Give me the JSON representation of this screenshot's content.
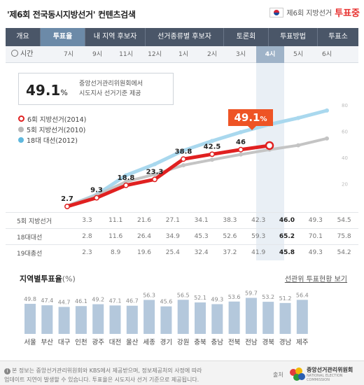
{
  "header": {
    "title": "'제6회 전국동시지방선거' 컨텐츠검색",
    "badge_small": "제6회 지방선거",
    "badge_big": "투표중"
  },
  "nav": [
    "개요",
    "투표율",
    "내 지역 후보자",
    "선거종류별 후보자",
    "토론회",
    "투표방법",
    "투표소"
  ],
  "time": {
    "label": "시간",
    "hours": [
      "7시",
      "9시",
      "11시",
      "12시",
      "1시",
      "2시",
      "3시",
      "4시",
      "5시",
      "6시"
    ],
    "active_index": 7
  },
  "info": {
    "value": "49.1",
    "unit": "%",
    "text1": "중앙선거관리위원회에서",
    "text2": "시도지사 선거기준 제공"
  },
  "legend": [
    {
      "label": "6회 지방선거(2014)",
      "color": "#e02020"
    },
    {
      "label": "5회 지방선거(2010)",
      "color": "#b8b8b8"
    },
    {
      "label": "18대 대선(2012)",
      "color": "#5fb8de"
    }
  ],
  "callout": {
    "value": "49.1",
    "unit": "%"
  },
  "chart_data": [
    {
      "type": "line",
      "x": [
        "7시",
        "9시",
        "11시",
        "12시",
        "1시",
        "2시",
        "3시",
        "4시",
        "5시",
        "6시"
      ],
      "series": [
        {
          "name": "6회 지방선거(2014)",
          "values": [
            2.7,
            9.3,
            18.8,
            23.3,
            38.8,
            42.5,
            46.0,
            49.1,
            null,
            null
          ],
          "color": "#e02020"
        },
        {
          "name": "5회 지방선거(2010)",
          "values": [
            3.3,
            11.1,
            21.6,
            27.1,
            34.1,
            38.3,
            42.3,
            46.0,
            49.3,
            54.5
          ],
          "color": "#c4c4c4"
        },
        {
          "name": "18대 대선(2012)",
          "values": [
            2.8,
            11.6,
            26.4,
            34.9,
            45.3,
            52.6,
            59.3,
            65.2,
            70.1,
            75.8
          ],
          "color": "#a9d8ee"
        }
      ],
      "data_labels": [
        "2.7",
        "9.3",
        "18.8",
        "23.3",
        "38.8",
        "42.5",
        "46"
      ],
      "right_ticks": [
        "80",
        "60",
        "40",
        "20"
      ],
      "ylim": [
        0,
        80
      ]
    },
    {
      "type": "bar",
      "title": "지역별투표율",
      "title_unit": "(%)",
      "categories": [
        "서울",
        "부산",
        "대구",
        "인천",
        "광주",
        "대전",
        "울산",
        "세종",
        "경기",
        "강원",
        "충북",
        "충남",
        "전북",
        "전남",
        "경북",
        "경남",
        "제주"
      ],
      "values": [
        49.8,
        47.4,
        44.7,
        46.1,
        49.2,
        47.1,
        46.7,
        56.3,
        45.6,
        56.5,
        52.1,
        49.3,
        53.6,
        59.7,
        53.2,
        51.2,
        56.4
      ],
      "ylim": [
        0,
        80
      ],
      "color": "#b4c8dc"
    }
  ],
  "table": [
    {
      "label": "5회 지방선거",
      "values": [
        "3.3",
        "11.1",
        "21.6",
        "27.1",
        "34.1",
        "38.3",
        "42.3",
        "46.0",
        "49.3",
        "54.5"
      ]
    },
    {
      "label": "18대대선",
      "values": [
        "2.8",
        "11.6",
        "26.4",
        "34.9",
        "45.3",
        "52.6",
        "59.3",
        "65.2",
        "70.1",
        "75.8"
      ]
    },
    {
      "label": "19대총선",
      "values": [
        "2.3",
        "8.9",
        "19.6",
        "25.4",
        "32.4",
        "37.2",
        "41.9",
        "45.8",
        "49.3",
        "54.2"
      ]
    }
  ],
  "region": {
    "title": "지역별투표율",
    "unit": "(%)",
    "link": "선관위 투표현황 보기"
  },
  "footer": {
    "note1": "본 정보는 중앙선거관리위원회와 KBS에서 제공받으며, 정보제공처의 사정에 따라",
    "note2": "업데이트 지연이 발생할 수 있습니다. 투표율은 시도지사 선거 기준으로 제공됩니다.",
    "source_label": "출처",
    "org": "중앙선거관리위원회",
    "org_en": "NATIONAL ELECTION COMMISSION"
  }
}
